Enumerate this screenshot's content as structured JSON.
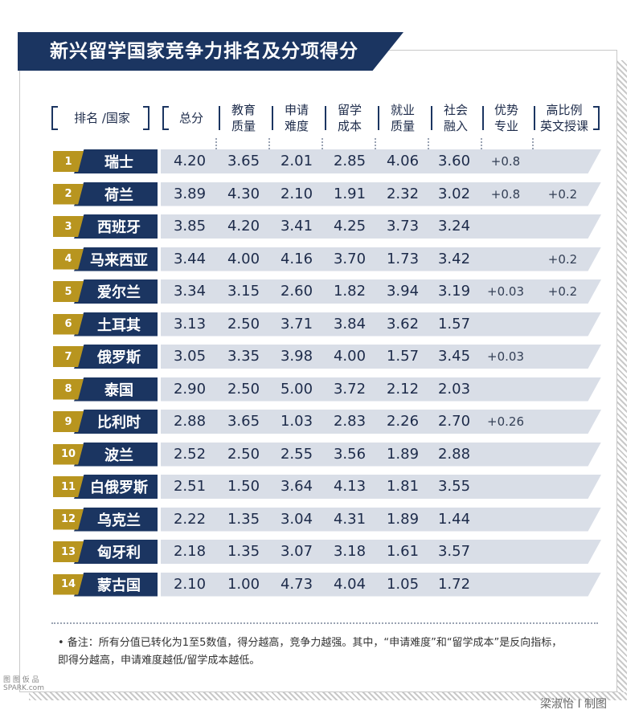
{
  "title": "新兴留学国家竞争力排名及分项得分",
  "headers": {
    "rank_country": "排名 /国家",
    "total": "总分",
    "edu": [
      "教育",
      "质量"
    ],
    "apply": [
      "申请",
      "难度"
    ],
    "cost": [
      "留学",
      "成本"
    ],
    "job": [
      "就业",
      "质量"
    ],
    "social": [
      "社会",
      "融入"
    ],
    "major": [
      "优势",
      "专业"
    ],
    "english": [
      "高比例",
      "英文授课"
    ]
  },
  "rows": [
    {
      "rank": "1",
      "country": "瑞士",
      "total": "4.20",
      "edu": "3.65",
      "apply": "2.01",
      "cost": "2.85",
      "job": "4.06",
      "social": "3.60",
      "major": "+0.8",
      "english": ""
    },
    {
      "rank": "2",
      "country": "荷兰",
      "total": "3.89",
      "edu": "4.30",
      "apply": "2.10",
      "cost": "1.91",
      "job": "2.32",
      "social": "3.02",
      "major": "+0.8",
      "english": "+0.2"
    },
    {
      "rank": "3",
      "country": "西班牙",
      "total": "3.85",
      "edu": "4.20",
      "apply": "3.41",
      "cost": "4.25",
      "job": "3.73",
      "social": "3.24",
      "major": "",
      "english": ""
    },
    {
      "rank": "4",
      "country": "马来西亚",
      "total": "3.44",
      "edu": "4.00",
      "apply": "4.16",
      "cost": "3.70",
      "job": "1.73",
      "social": "3.42",
      "major": "",
      "english": "+0.2"
    },
    {
      "rank": "5",
      "country": "爱尔兰",
      "total": "3.34",
      "edu": "3.15",
      "apply": "2.60",
      "cost": "1.82",
      "job": "3.94",
      "social": "3.19",
      "major": "+0.03",
      "english": "+0.2"
    },
    {
      "rank": "6",
      "country": "土耳其",
      "total": "3.13",
      "edu": "2.50",
      "apply": "3.71",
      "cost": "3.84",
      "job": "3.62",
      "social": "1.57",
      "major": "",
      "english": ""
    },
    {
      "rank": "7",
      "country": "俄罗斯",
      "total": "3.05",
      "edu": "3.35",
      "apply": "3.98",
      "cost": "4.00",
      "job": "1.57",
      "social": "3.45",
      "major": "+0.03",
      "english": ""
    },
    {
      "rank": "8",
      "country": "泰国",
      "total": "2.90",
      "edu": "2.50",
      "apply": "5.00",
      "cost": "3.72",
      "job": "2.12",
      "social": "2.03",
      "major": "",
      "english": ""
    },
    {
      "rank": "9",
      "country": "比利时",
      "total": "2.88",
      "edu": "3.65",
      "apply": "1.03",
      "cost": "2.83",
      "job": "2.26",
      "social": "2.70",
      "major": "+0.26",
      "english": ""
    },
    {
      "rank": "10",
      "country": "波兰",
      "total": "2.52",
      "edu": "2.50",
      "apply": "2.55",
      "cost": "3.56",
      "job": "1.89",
      "social": "2.88",
      "major": "",
      "english": ""
    },
    {
      "rank": "11",
      "country": "白俄罗斯",
      "total": "2.51",
      "edu": "1.50",
      "apply": "3.64",
      "cost": "4.13",
      "job": "1.81",
      "social": "3.55",
      "major": "",
      "english": ""
    },
    {
      "rank": "12",
      "country": "乌克兰",
      "total": "2.22",
      "edu": "1.35",
      "apply": "3.04",
      "cost": "4.31",
      "job": "1.89",
      "social": "1.44",
      "major": "",
      "english": ""
    },
    {
      "rank": "13",
      "country": "匈牙利",
      "total": "2.18",
      "edu": "1.35",
      "apply": "3.07",
      "cost": "3.18",
      "job": "1.61",
      "social": "3.57",
      "major": "",
      "english": ""
    },
    {
      "rank": "14",
      "country": "蒙古国",
      "total": "2.10",
      "edu": "1.00",
      "apply": "4.73",
      "cost": "4.04",
      "job": "1.05",
      "social": "1.72",
      "major": "",
      "english": ""
    }
  ],
  "note": "• 备注：所有分值已转化为1至5数值，得分越高，竞争力越强。其中，“申请难度”和“留学成本”是反向指标，即得分越高，申请难度越低/留学成本越低。",
  "credit": "梁淑怡 I 制图",
  "watermark": [
    "图 图 仮 品",
    "SPARK.com"
  ],
  "colors": {
    "navy": "#1b3561",
    "gold": "#b8951f",
    "row_bg": "#d9dee7"
  }
}
